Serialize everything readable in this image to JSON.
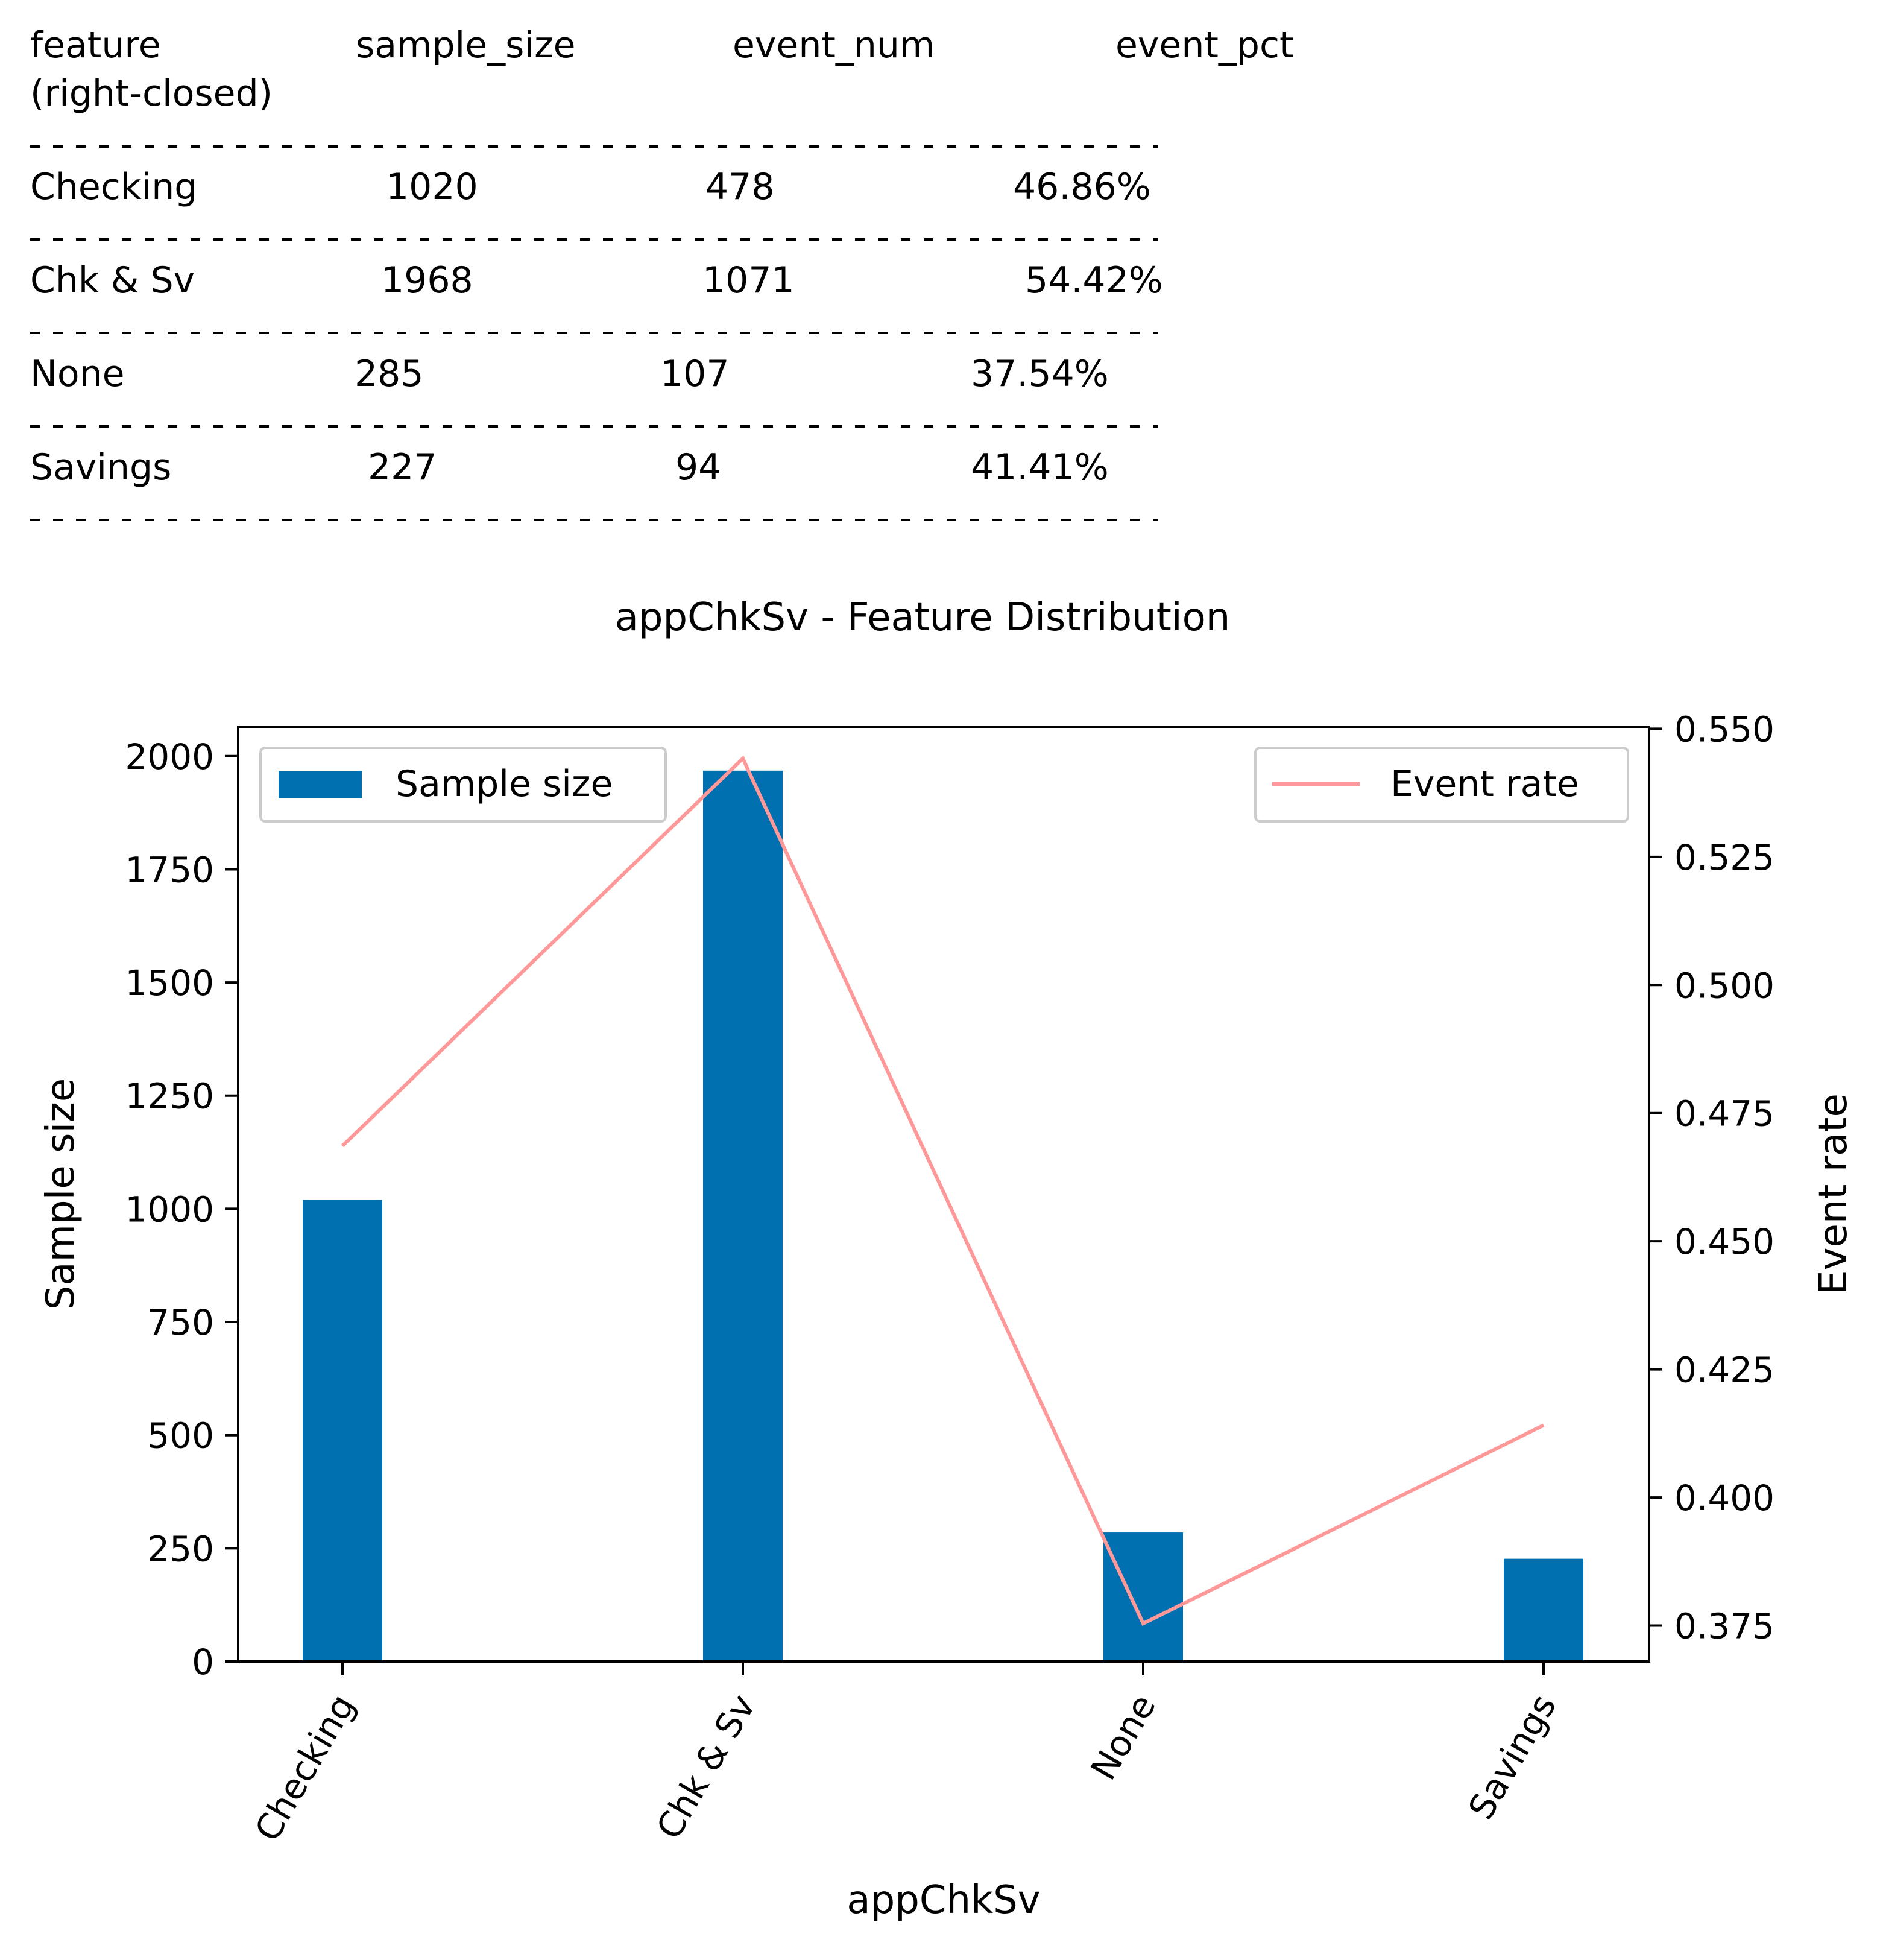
{
  "table": {
    "headers": [
      {
        "label": "feature",
        "sublabel": "(right-closed)"
      },
      {
        "label": "sample_size"
      },
      {
        "label": "event_num"
      },
      {
        "label": "event_pct"
      }
    ],
    "rows": [
      {
        "feature": "Checking",
        "sample_size": "1020",
        "event_num": "478",
        "event_pct": "46.86%"
      },
      {
        "feature": "Chk & Sv",
        "sample_size": "1968",
        "event_num": "1071",
        "event_pct": "54.42%"
      },
      {
        "feature": "None",
        "sample_size": "285",
        "event_num": "107",
        "event_pct": "37.54%"
      },
      {
        "feature": "Savings",
        "sample_size": "227",
        "event_num": "94",
        "event_pct": "41.41%"
      }
    ]
  },
  "chart_data": {
    "type": "bar",
    "title": "appChkSv - Feature Distribution",
    "xlabel": "appChkSv",
    "ylabel": "Sample size",
    "y2label": "Event rate",
    "categories": [
      "Checking",
      "Chk & Sv",
      "None",
      "Savings"
    ],
    "series": [
      {
        "name": "Sample size",
        "type": "bar",
        "axis": "left",
        "color": "#0070b0",
        "values": [
          1020,
          1968,
          285,
          227
        ]
      },
      {
        "name": "Event rate",
        "type": "line",
        "axis": "right",
        "color": "#ff9999",
        "values": [
          0.4686,
          0.5442,
          0.3754,
          0.4141
        ]
      }
    ],
    "ylim": [
      0,
      2065
    ],
    "y2lim": [
      0.368,
      0.5504
    ],
    "yticks": [
      0,
      250,
      500,
      750,
      1000,
      1250,
      1500,
      1750,
      2000
    ],
    "y2ticks": [
      "0.375",
      "0.400",
      "0.425",
      "0.450",
      "0.475",
      "0.500",
      "0.525",
      "0.550"
    ],
    "legend_left": "upper-left",
    "legend_right": "upper-right",
    "grid": false
  }
}
